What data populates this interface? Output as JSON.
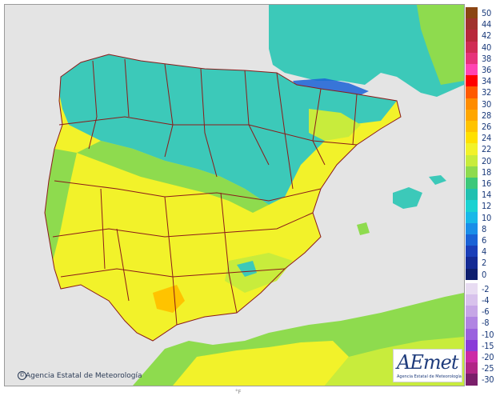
{
  "map": {
    "credit": "Agencia Estatal de Meteorología",
    "copyright_symbol": "©",
    "logo_text": "AEmet",
    "logo_subtitle": "Agencia Estatal de Meteorología",
    "bottom_mark": "°F",
    "colors": {
      "sea": "#e4e4e4",
      "border": "#8b1a1a",
      "land_warm": "#f3ee2e",
      "land_mild": "#b8e850",
      "land_cool": "#3cc9b9",
      "land_hot": "#ffd12a"
    }
  },
  "legend": [
    {
      "label": "50",
      "color": "#8b4513"
    },
    {
      "label": "44",
      "color": "#a0322d"
    },
    {
      "label": "42",
      "color": "#b8283c"
    },
    {
      "label": "40",
      "color": "#d02c54"
    },
    {
      "label": "38",
      "color": "#e6337a"
    },
    {
      "label": "36",
      "color": "#ff44b3"
    },
    {
      "label": "34",
      "color": "#ff0000"
    },
    {
      "label": "32",
      "color": "#ff5a00"
    },
    {
      "label": "30",
      "color": "#ff8c00"
    },
    {
      "label": "28",
      "color": "#ffa600"
    },
    {
      "label": "26",
      "color": "#ffc300"
    },
    {
      "label": "24",
      "color": "#ffe000"
    },
    {
      "label": "22",
      "color": "#f2f22a"
    },
    {
      "label": "20",
      "color": "#c8ec3c"
    },
    {
      "label": "18",
      "color": "#8edb4e"
    },
    {
      "label": "16",
      "color": "#3cc87a"
    },
    {
      "label": "14",
      "color": "#20c0b0"
    },
    {
      "label": "12",
      "color": "#1ad2d2"
    },
    {
      "label": "10",
      "color": "#18b8e8"
    },
    {
      "label": "8",
      "color": "#1a8ee8"
    },
    {
      "label": "6",
      "color": "#1a62d6"
    },
    {
      "label": "4",
      "color": "#1a3eb8"
    },
    {
      "label": "2",
      "color": "#142a94"
    },
    {
      "label": "0",
      "color": "#0e1e6e"
    },
    {
      "label": "-2",
      "color": "#e8dcf2"
    },
    {
      "label": "-4",
      "color": "#d8c2ec"
    },
    {
      "label": "-6",
      "color": "#c6a6e6"
    },
    {
      "label": "-8",
      "color": "#b084e2"
    },
    {
      "label": "-10",
      "color": "#9a62de"
    },
    {
      "label": "-15",
      "color": "#8a3cd8"
    },
    {
      "label": "-20",
      "color": "#cc2aa6"
    },
    {
      "label": "-25",
      "color": "#b02686"
    },
    {
      "label": "-30",
      "color": "#7a1e6a"
    }
  ]
}
